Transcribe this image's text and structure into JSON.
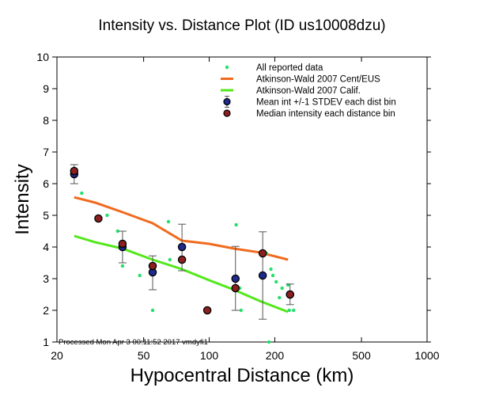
{
  "chart_data": {
    "type": "scatter",
    "title": "Intensity vs. Distance Plot (ID us10008dzu)",
    "xlabel": "Hypocentral Distance (km)",
    "ylabel": "Intensity",
    "xscale": "log",
    "xlim": [
      20,
      1000
    ],
    "ylim": [
      1,
      10
    ],
    "x_ticks": [
      20,
      50,
      100,
      200,
      500,
      1000
    ],
    "x_tick_labels": [
      "20",
      "50",
      "100",
      "200",
      "500",
      "1000"
    ],
    "y_ticks": [
      1,
      2,
      3,
      4,
      5,
      6,
      7,
      8,
      9,
      10
    ],
    "y_tick_labels": [
      "1",
      "2",
      "3",
      "4",
      "5",
      "6",
      "7",
      "8",
      "9",
      "10"
    ],
    "grid": false,
    "legend_position": "top-right",
    "legend": [
      {
        "label": "All reported data",
        "symbol": "dot",
        "color": "#22e06a"
      },
      {
        "label": "Atkinson-Wald 2007 Cent/EUS",
        "symbol": "line",
        "color": "#f06a1e"
      },
      {
        "label": "Atkinson-Wald 2007 Calif.",
        "symbol": "line",
        "color": "#52e81a"
      },
      {
        "label": "Mean int +/-1 STDEV each dist bin",
        "symbol": "circle-errorbar",
        "color": "#1e2a8c"
      },
      {
        "label": "Median intensity each distance bin",
        "symbol": "circle",
        "color": "#8c2020"
      }
    ],
    "series": [
      {
        "name": "All reported data",
        "type": "scatter",
        "color": "#22e06a",
        "points": [
          [
            26,
            5.7
          ],
          [
            34,
            5.0
          ],
          [
            38,
            4.5
          ],
          [
            40,
            3.4
          ],
          [
            40,
            4.0
          ],
          [
            48,
            3.1
          ],
          [
            55,
            2.0
          ],
          [
            65,
            4.8
          ],
          [
            66,
            3.6
          ],
          [
            100,
            2.0
          ],
          [
            133,
            4.7
          ],
          [
            138,
            2.7
          ],
          [
            140,
            2.0
          ],
          [
            180,
            3.8
          ],
          [
            183,
            3.8
          ],
          [
            192,
            3.3
          ],
          [
            196,
            3.1
          ],
          [
            203,
            2.9
          ],
          [
            210,
            2.4
          ],
          [
            216,
            2.7
          ],
          [
            230,
            2.8
          ],
          [
            233,
            2.0
          ],
          [
            240,
            2.5
          ],
          [
            244,
            2.0
          ],
          [
            188,
            1.0
          ]
        ]
      },
      {
        "name": "Atkinson-Wald 2007 Cent/EUS",
        "type": "line",
        "color": "#f06a1e",
        "points": [
          [
            24,
            5.57
          ],
          [
            30,
            5.4
          ],
          [
            40,
            5.1
          ],
          [
            55,
            4.75
          ],
          [
            75,
            4.2
          ],
          [
            100,
            4.1
          ],
          [
            130,
            3.95
          ],
          [
            170,
            3.83
          ],
          [
            230,
            3.6
          ]
        ]
      },
      {
        "name": "Atkinson-Wald 2007 Calif.",
        "type": "line",
        "color": "#52e81a",
        "points": [
          [
            24,
            4.35
          ],
          [
            30,
            4.15
          ],
          [
            40,
            3.95
          ],
          [
            55,
            3.6
          ],
          [
            75,
            3.3
          ],
          [
            100,
            2.95
          ],
          [
            130,
            2.65
          ],
          [
            170,
            2.3
          ],
          [
            230,
            1.95
          ]
        ]
      },
      {
        "name": "Mean int +/-1 STDEV each dist bin",
        "type": "errorbar",
        "color": "#1e2a8c",
        "points": [
          {
            "x": 24,
            "y": 6.3,
            "low": 6.0,
            "high": 6.6
          },
          {
            "x": 40,
            "y": 4.0,
            "low": 3.5,
            "high": 4.5
          },
          {
            "x": 55,
            "y": 3.2,
            "low": 2.65,
            "high": 3.72
          },
          {
            "x": 75,
            "y": 4.0,
            "low": 3.25,
            "high": 4.72
          },
          {
            "x": 132,
            "y": 3.0,
            "low": 2.0,
            "high": 4.02
          },
          {
            "x": 176,
            "y": 3.1,
            "low": 1.72,
            "high": 4.48
          },
          {
            "x": 235,
            "y": 2.5,
            "low": 2.18,
            "high": 2.83
          }
        ]
      },
      {
        "name": "Median intensity each distance bin",
        "type": "scatter",
        "color": "#8c2020",
        "points": [
          [
            24,
            6.4
          ],
          [
            31,
            4.9
          ],
          [
            40,
            4.1
          ],
          [
            55,
            3.4
          ],
          [
            75,
            3.6
          ],
          [
            98,
            2.0
          ],
          [
            132,
            2.7
          ],
          [
            176,
            3.8
          ],
          [
            235,
            2.5
          ]
        ]
      }
    ],
    "annotations": [
      "Processed Mon Apr  3 00:11:52 2017 vmdyfi1"
    ]
  }
}
